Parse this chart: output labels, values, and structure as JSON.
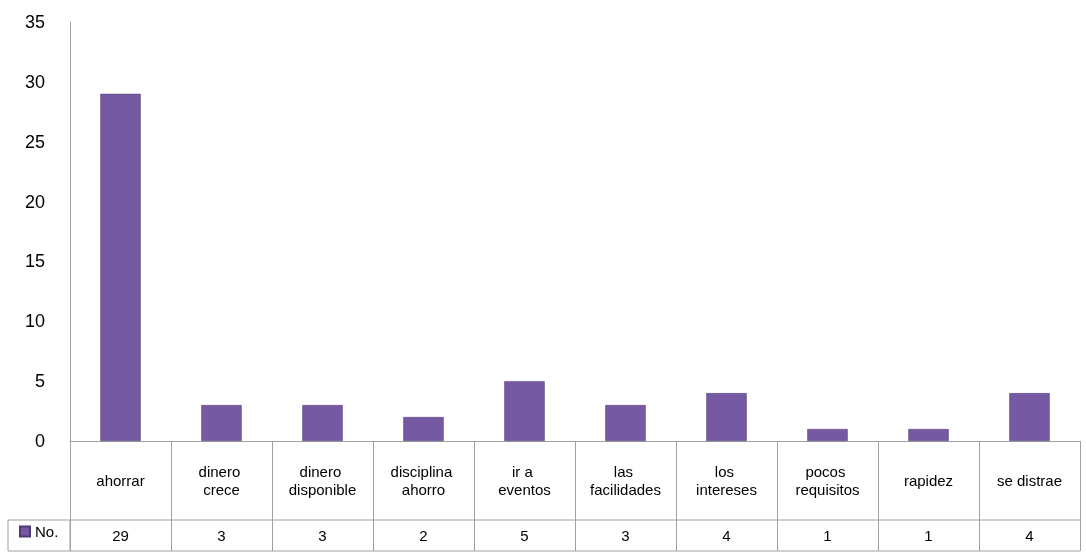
{
  "chart_data": {
    "type": "bar",
    "categories": [
      "ahorrar",
      "dinero crece",
      "dinero disponible",
      "disciplina ahorro",
      "ir a eventos",
      "las facilidades",
      "los intereses",
      "pocos requisitos",
      "rapidez",
      "se distrae"
    ],
    "series": [
      {
        "name": "No.",
        "color": "#7659a3",
        "values": [
          29,
          3,
          3,
          2,
          5,
          3,
          4,
          1,
          1,
          4
        ]
      }
    ],
    "ylim": [
      0,
      35
    ],
    "yticks": [
      0,
      5,
      10,
      15,
      20,
      25,
      30,
      35
    ],
    "grid": false,
    "legend": "bottom left",
    "data_labels": true
  }
}
